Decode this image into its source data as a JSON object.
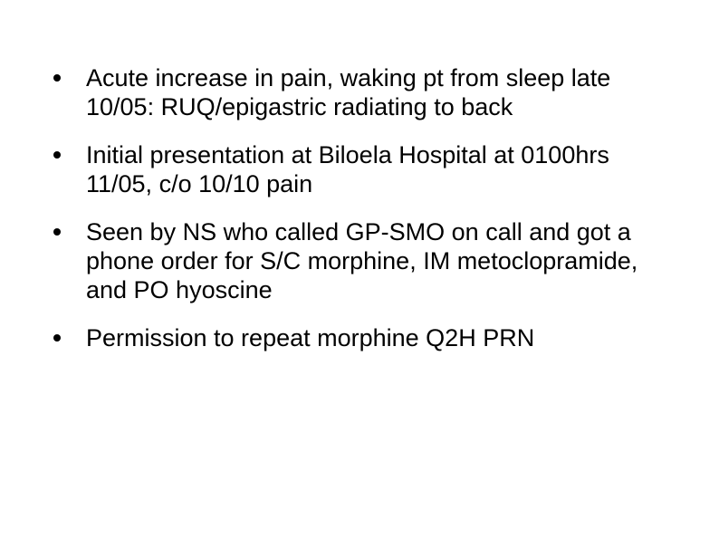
{
  "slide": {
    "background_color": "#ffffff",
    "text_color": "#000000",
    "font_family": "Arial, Helvetica, sans-serif",
    "font_size_pt": 20,
    "bullet_marker_color": "#000000",
    "bullets": [
      "Acute increase in pain, waking pt from sleep late 10/05: RUQ/epigastric radiating to back",
      "Initial presentation at Biloela Hospital at 0100hrs 11/05, c/o 10/10 pain",
      "Seen by NS who called GP-SMO on call and got a phone order for S/C morphine, IM metoclopramide, and PO hyoscine",
      "Permission to repeat morphine Q2H PRN"
    ]
  }
}
